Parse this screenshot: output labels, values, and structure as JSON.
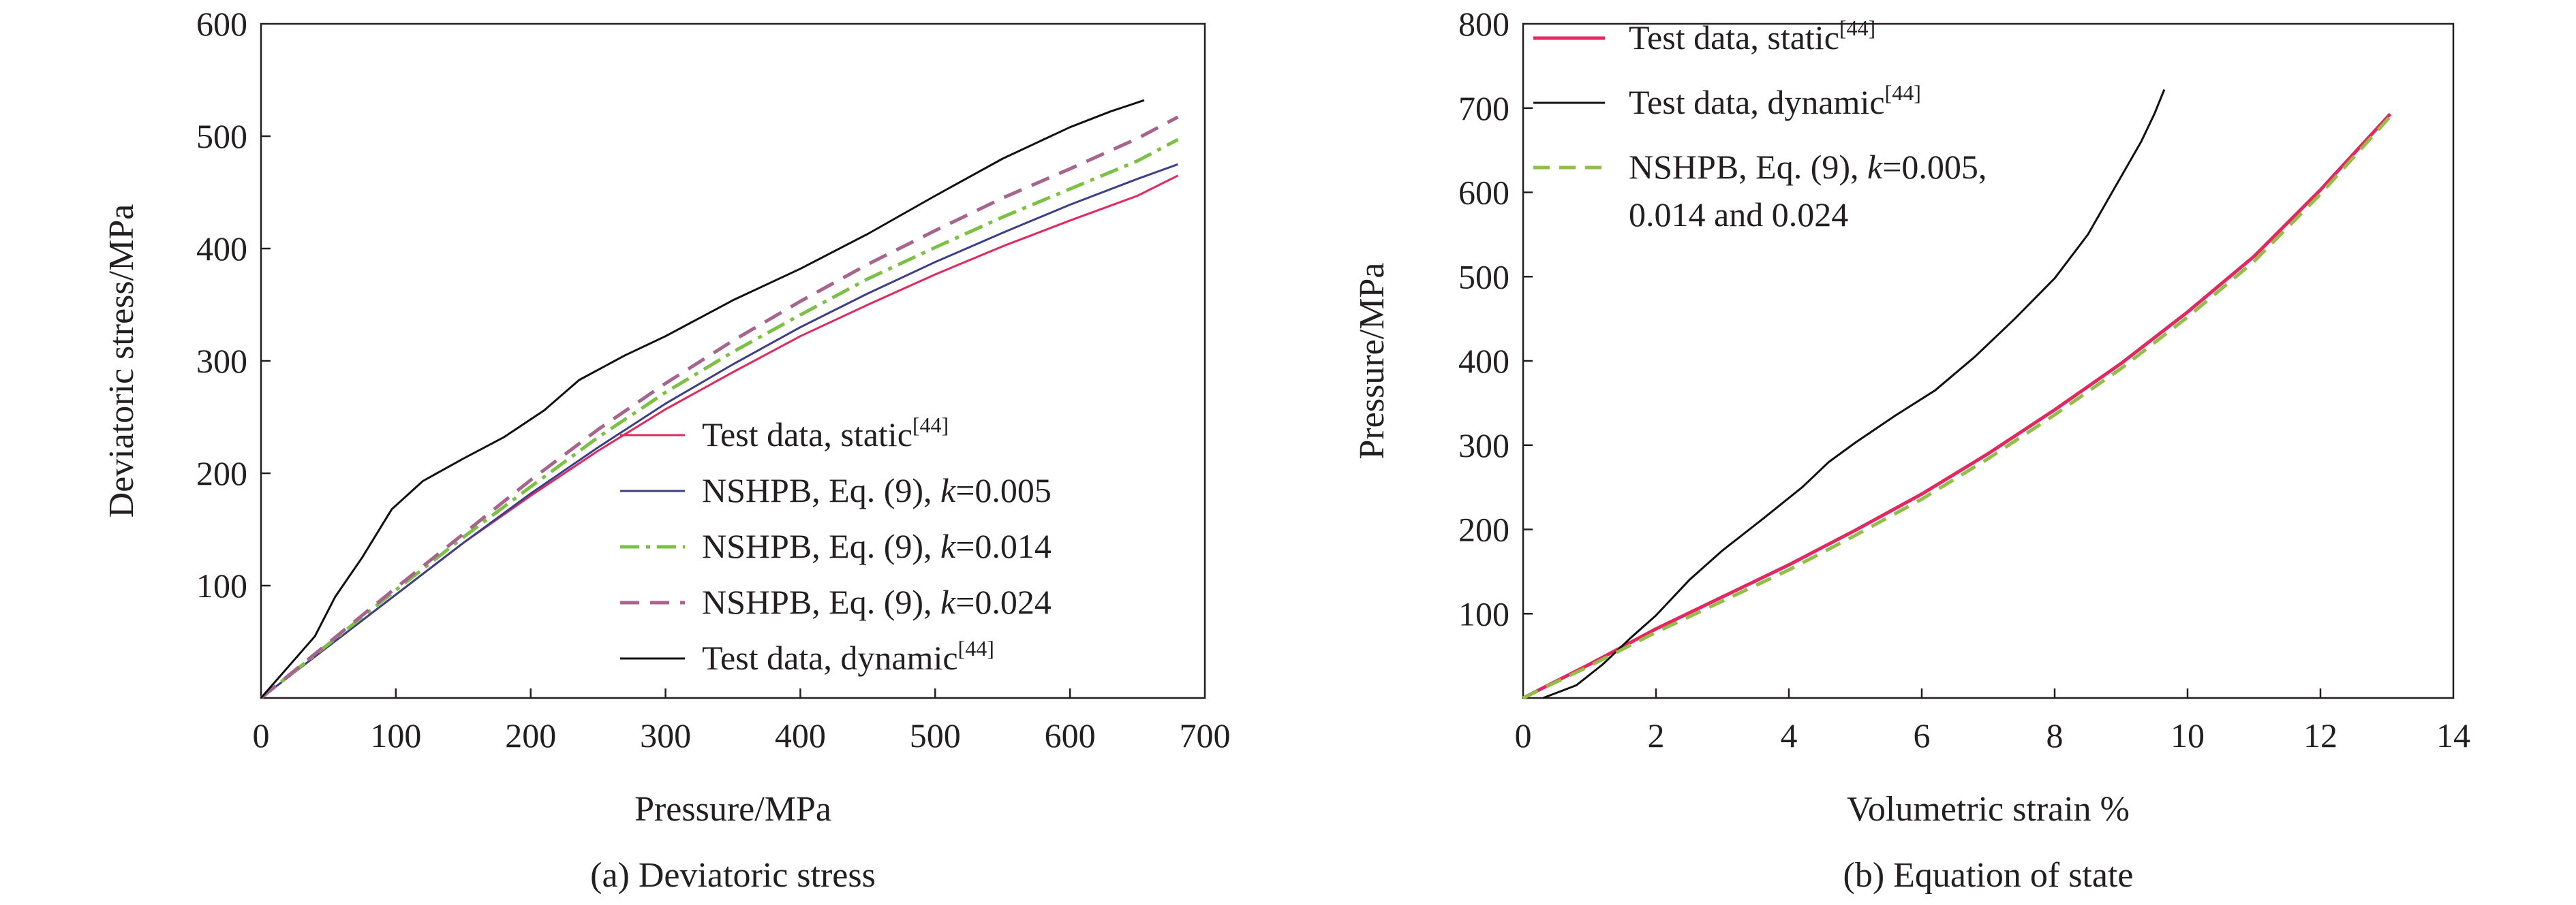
{
  "colors": {
    "static": "#e8265e",
    "dynamic": "#111111",
    "k005": "#3c3f8a",
    "k014": "#7cc242",
    "k024": "#a8648c",
    "axis": "#231f20"
  },
  "chart_data": [
    {
      "type": "line",
      "caption": "(a) Deviatoric stress",
      "xlabel": "Pressure/MPa",
      "ylabel": "Deviatoric stress/MPa",
      "xlim": [
        0,
        700
      ],
      "ylim": [
        0,
        600
      ],
      "xticks": [
        "0",
        "100",
        "200",
        "300",
        "400",
        "500",
        "600",
        "700"
      ],
      "yticks": [
        "100",
        "200",
        "300",
        "400",
        "500",
        "600"
      ],
      "legend_position": "bottom-right",
      "series": [
        {
          "key": "static",
          "legend": {
            "pre": "Test data, static",
            "ref": "[44]"
          },
          "color": "#e8265e",
          "dash": "none",
          "width": 3,
          "x": [
            0,
            50,
            100,
            150,
            200,
            250,
            300,
            350,
            400,
            450,
            500,
            550,
            600,
            650,
            680
          ],
          "y": [
            0,
            46,
            92,
            138,
            180,
            220,
            257,
            290,
            322,
            350,
            377,
            402,
            425,
            447,
            465
          ]
        },
        {
          "key": "k005",
          "legend": {
            "pre": "NSHPB, Eq. (9), ",
            "italic": "k",
            "post": "=0.005"
          },
          "color": "#3c3f8a",
          "dash": "none",
          "width": 3,
          "x": [
            0,
            50,
            100,
            150,
            200,
            250,
            300,
            350,
            400,
            450,
            500,
            550,
            600,
            650,
            680
          ],
          "y": [
            0,
            46,
            92,
            138,
            182,
            223,
            262,
            297,
            330,
            360,
            388,
            414,
            439,
            462,
            475
          ]
        },
        {
          "key": "k014",
          "legend": {
            "pre": "NSHPB, Eq. (9), ",
            "italic": "k",
            "post": "=0.014"
          },
          "color": "#7cc242",
          "dash": "28 10 6 10",
          "width": 5,
          "x": [
            0,
            50,
            100,
            150,
            200,
            250,
            300,
            350,
            400,
            450,
            500,
            550,
            600,
            650,
            680
          ],
          "y": [
            0,
            48,
            96,
            143,
            188,
            232,
            272,
            308,
            341,
            373,
            401,
            428,
            453,
            478,
            497
          ]
        },
        {
          "key": "k024",
          "legend": {
            "pre": "NSHPB, Eq. (9), ",
            "italic": "k",
            "post": "=0.024"
          },
          "color": "#a8648c",
          "dash": "28 16",
          "width": 5,
          "x": [
            0,
            50,
            100,
            150,
            200,
            250,
            300,
            350,
            400,
            450,
            500,
            550,
            600,
            650,
            680
          ],
          "y": [
            0,
            49,
            98,
            146,
            194,
            239,
            280,
            318,
            353,
            386,
            416,
            445,
            471,
            498,
            517
          ]
        },
        {
          "key": "dynamic",
          "legend": {
            "pre": "Test data, dynamic",
            "ref": "[44]"
          },
          "color": "#111111",
          "dash": "none",
          "width": 3,
          "x": [
            0,
            40,
            55,
            75,
            97,
            120,
            150,
            180,
            210,
            236,
            270,
            300,
            350,
            400,
            450,
            500,
            550,
            600,
            630,
            655
          ],
          "y": [
            0,
            55,
            90,
            125,
            168,
            193,
            213,
            232,
            256,
            283,
            305,
            322,
            354,
            382,
            413,
            447,
            480,
            508,
            522,
            532
          ]
        }
      ]
    },
    {
      "type": "line",
      "caption": "(b) Equation of state",
      "xlabel": "Volumetric strain %",
      "ylabel": "Pressure/MPa",
      "xlim": [
        0,
        14
      ],
      "ylim": [
        0,
        800
      ],
      "xticks": [
        "0",
        "2",
        "4",
        "6",
        "8",
        "10",
        "12",
        "14"
      ],
      "yticks": [
        "100",
        "200",
        "300",
        "400",
        "500",
        "600",
        "700",
        "800"
      ],
      "legend_position": "top-left",
      "series": [
        {
          "key": "static",
          "legend": {
            "pre": "Test data, static",
            "ref": "[44]"
          },
          "color": "#e8265e",
          "dash": "none",
          "width": 5,
          "x": [
            0,
            1,
            2,
            3,
            4,
            5,
            6,
            7,
            8,
            9,
            10,
            11,
            12,
            13.05
          ],
          "y": [
            0,
            40,
            82,
            120,
            158,
            199,
            242,
            290,
            342,
            397,
            458,
            524,
            603,
            693
          ]
        },
        {
          "key": "dynamic",
          "legend": {
            "pre": "Test data, dynamic",
            "ref": "[44]"
          },
          "color": "#111111",
          "dash": "none",
          "width": 3,
          "x": [
            0.3,
            0.8,
            1.2,
            1.6,
            2.0,
            2.5,
            3.0,
            3.6,
            4.2,
            4.6,
            5.0,
            5.6,
            6.2,
            6.8,
            7.4,
            8.0,
            8.5,
            8.9,
            9.3,
            9.5,
            9.65
          ],
          "y": [
            0,
            15,
            40,
            70,
            98,
            140,
            175,
            212,
            250,
            280,
            303,
            335,
            365,
            405,
            450,
            498,
            550,
            605,
            660,
            693,
            722
          ]
        },
        {
          "key": "nshpb",
          "legend": {
            "pre": "NSHPB, Eq. (9), ",
            "italic": "k",
            "post": "=0.005,",
            "line2": "0.014 and 0.024"
          },
          "color": "#8fbf45",
          "dash": "24 14",
          "width": 5,
          "x": [
            0,
            1,
            2,
            3,
            4,
            5,
            6,
            7,
            8,
            9,
            10,
            11,
            12,
            13.05
          ],
          "y": [
            0,
            38,
            78,
            115,
            152,
            193,
            236,
            284,
            336,
            391,
            452,
            518,
            598,
            690
          ]
        }
      ]
    }
  ]
}
